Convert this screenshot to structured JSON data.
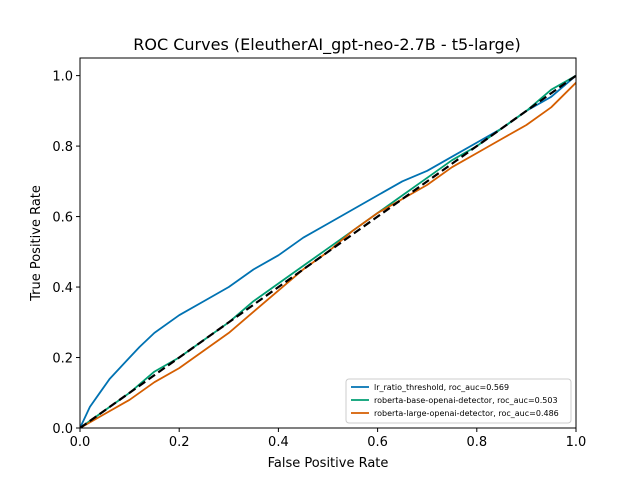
{
  "chart_data": {
    "type": "line",
    "title": "ROC Curves (EleutherAI_gpt-neo-2.7B - t5-large)",
    "xlabel": "False Positive Rate",
    "ylabel": "True Positive Rate",
    "xlim": [
      0,
      1
    ],
    "ylim": [
      0,
      1.05
    ],
    "xticks": [
      "0.0",
      "0.2",
      "0.4",
      "0.6",
      "0.8",
      "1.0"
    ],
    "yticks": [
      "0.0",
      "0.2",
      "0.4",
      "0.6",
      "0.8",
      "1.0"
    ],
    "grid": false,
    "legend_position": "lower-right",
    "series": [
      {
        "name": "lr_ratio_threshold, roc_auc=0.569",
        "color": "#0072b2",
        "x": [
          0,
          0.01,
          0.02,
          0.04,
          0.06,
          0.08,
          0.1,
          0.12,
          0.15,
          0.2,
          0.25,
          0.3,
          0.35,
          0.4,
          0.45,
          0.5,
          0.55,
          0.6,
          0.65,
          0.7,
          0.75,
          0.8,
          0.85,
          0.9,
          0.95,
          1.0
        ],
        "y": [
          0,
          0.03,
          0.06,
          0.1,
          0.14,
          0.17,
          0.2,
          0.23,
          0.27,
          0.32,
          0.36,
          0.4,
          0.45,
          0.49,
          0.54,
          0.58,
          0.62,
          0.66,
          0.7,
          0.73,
          0.77,
          0.81,
          0.85,
          0.9,
          0.94,
          1.0
        ]
      },
      {
        "name": "roberta-base-openai-detector, roc_auc=0.503",
        "color": "#009e73",
        "x": [
          0,
          0.05,
          0.1,
          0.15,
          0.2,
          0.25,
          0.3,
          0.35,
          0.4,
          0.45,
          0.5,
          0.55,
          0.6,
          0.65,
          0.7,
          0.75,
          0.8,
          0.85,
          0.9,
          0.95,
          1.0
        ],
        "y": [
          0,
          0.05,
          0.1,
          0.16,
          0.2,
          0.25,
          0.3,
          0.36,
          0.41,
          0.46,
          0.51,
          0.56,
          0.61,
          0.66,
          0.71,
          0.76,
          0.8,
          0.85,
          0.9,
          0.96,
          1.0
        ]
      },
      {
        "name": "roberta-large-openai-detector, roc_auc=0.486",
        "color": "#d55e00",
        "x": [
          0,
          0.05,
          0.1,
          0.15,
          0.2,
          0.25,
          0.3,
          0.35,
          0.4,
          0.45,
          0.5,
          0.55,
          0.6,
          0.65,
          0.7,
          0.75,
          0.8,
          0.85,
          0.9,
          0.95,
          1.0
        ],
        "y": [
          0,
          0.04,
          0.08,
          0.13,
          0.17,
          0.22,
          0.27,
          0.33,
          0.39,
          0.45,
          0.5,
          0.56,
          0.61,
          0.65,
          0.69,
          0.74,
          0.78,
          0.82,
          0.86,
          0.91,
          0.98
        ]
      }
    ],
    "reference_line": {
      "color": "#000000",
      "x": [
        0,
        1
      ],
      "y": [
        0,
        1
      ]
    }
  }
}
